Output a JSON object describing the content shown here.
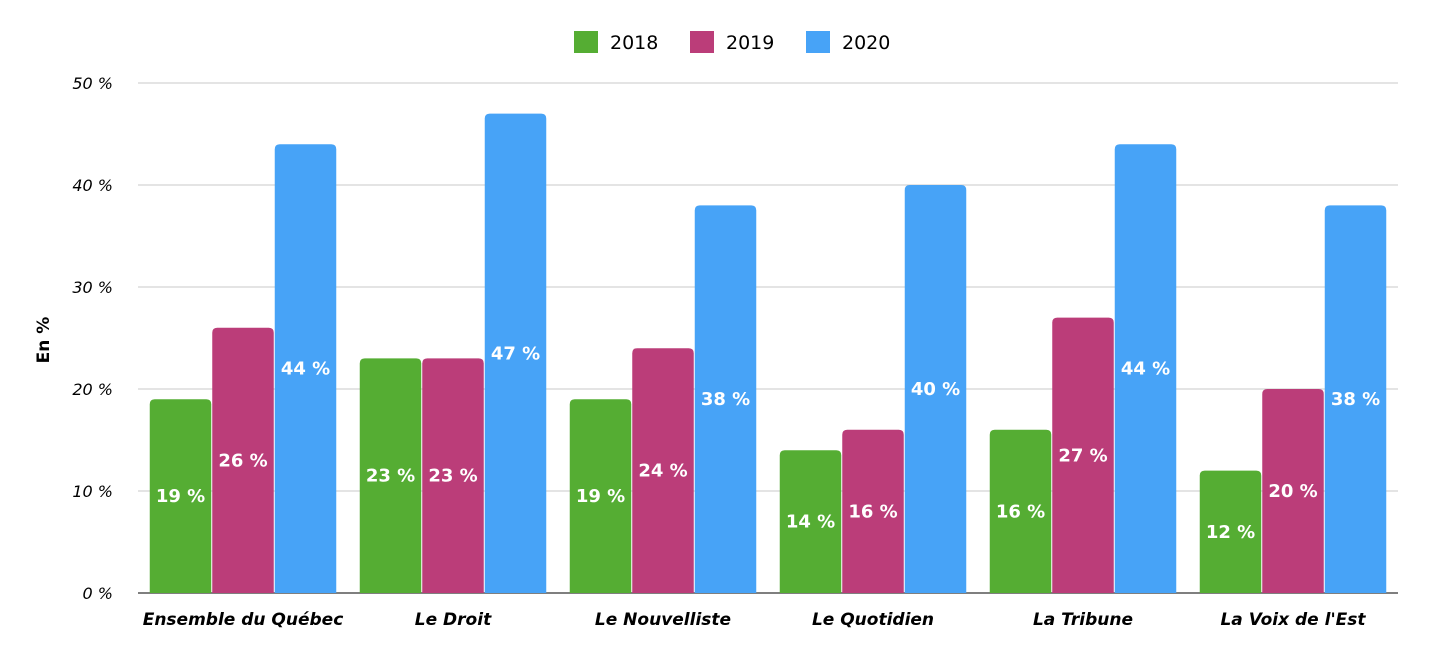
{
  "chart_data": {
    "type": "bar",
    "title": "",
    "xlabel": "",
    "ylabel": "En %",
    "ylim": [
      0,
      50
    ],
    "yticks": [
      "0 %",
      "10 %",
      "20 %",
      "30 %",
      "40 %",
      "50 %"
    ],
    "grid": true,
    "legend_position": "top-center",
    "categories": [
      "Ensemble du Québec",
      "Le Droit",
      "Le Nouvelliste",
      "Le Quotidien",
      "La Tribune",
      "La Voix de l'Est"
    ],
    "series": [
      {
        "name": "2018",
        "color": "#55ad33",
        "values": [
          19,
          23,
          19,
          14,
          16,
          12
        ]
      },
      {
        "name": "2019",
        "color": "#bb3d79",
        "values": [
          26,
          23,
          24,
          16,
          27,
          20
        ]
      },
      {
        "name": "2020",
        "color": "#47a3f7",
        "values": [
          44,
          47,
          38,
          40,
          44,
          38
        ]
      }
    ],
    "data_label_suffix": " %"
  }
}
